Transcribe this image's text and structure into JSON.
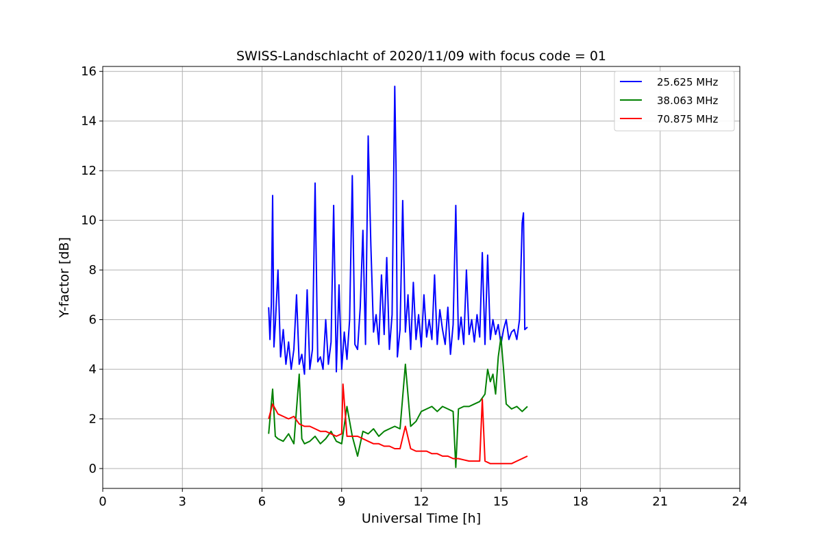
{
  "chart_data": {
    "type": "line",
    "title": "SWISS-Landschlacht of 2020/11/09 with focus code = 01",
    "xlabel": "Universal Time [h]",
    "ylabel": "Y-factor [dB]",
    "xlim": [
      0,
      24
    ],
    "ylim": [
      -0.8,
      16.2
    ],
    "xticks": [
      0,
      3,
      6,
      9,
      12,
      15,
      18,
      21,
      24
    ],
    "yticks": [
      0,
      2,
      4,
      6,
      8,
      10,
      12,
      14,
      16
    ],
    "grid": true,
    "legend_position": "top-right",
    "series": [
      {
        "name": "25.625 MHz",
        "color": "#0000ff",
        "x": [
          6.25,
          6.3,
          6.35,
          6.4,
          6.45,
          6.5,
          6.6,
          6.7,
          6.8,
          6.9,
          7.0,
          7.1,
          7.2,
          7.3,
          7.4,
          7.5,
          7.6,
          7.7,
          7.8,
          7.9,
          8.0,
          8.1,
          8.2,
          8.3,
          8.4,
          8.5,
          8.6,
          8.7,
          8.8,
          8.9,
          9.0,
          9.1,
          9.2,
          9.3,
          9.4,
          9.5,
          9.6,
          9.7,
          9.8,
          9.9,
          10.0,
          10.1,
          10.2,
          10.3,
          10.4,
          10.5,
          10.6,
          10.7,
          10.8,
          10.9,
          11.0,
          11.05,
          11.1,
          11.2,
          11.3,
          11.4,
          11.5,
          11.6,
          11.7,
          11.8,
          11.9,
          12.0,
          12.1,
          12.2,
          12.3,
          12.4,
          12.5,
          12.6,
          12.7,
          12.8,
          12.9,
          13.0,
          13.1,
          13.2,
          13.3,
          13.4,
          13.5,
          13.6,
          13.7,
          13.8,
          13.9,
          14.0,
          14.1,
          14.2,
          14.3,
          14.4,
          14.5,
          14.6,
          14.7,
          14.8,
          14.9,
          15.0,
          15.1,
          15.2,
          15.3,
          15.4,
          15.5,
          15.6,
          15.7,
          15.8,
          15.85,
          15.9,
          16.0
        ],
        "values": [
          6.5,
          5.2,
          6.6,
          11.0,
          4.9,
          5.8,
          8.0,
          4.5,
          5.6,
          4.2,
          5.1,
          4.0,
          4.8,
          7.0,
          4.2,
          4.6,
          3.8,
          7.2,
          4.0,
          4.8,
          11.5,
          4.3,
          4.5,
          4.0,
          6.0,
          4.2,
          5.1,
          10.6,
          3.9,
          7.4,
          4.0,
          5.5,
          4.4,
          6.0,
          11.8,
          5.0,
          4.8,
          6.5,
          9.6,
          5.0,
          13.4,
          9.0,
          5.5,
          6.2,
          5.0,
          7.8,
          5.4,
          8.5,
          4.8,
          6.2,
          15.4,
          12.0,
          4.5,
          5.6,
          10.8,
          5.5,
          7.0,
          4.8,
          7.5,
          5.2,
          6.2,
          4.9,
          7.0,
          5.3,
          6.0,
          5.2,
          7.8,
          5.0,
          6.4,
          5.6,
          5.0,
          6.5,
          4.6,
          5.8,
          10.6,
          5.2,
          6.1,
          5.0,
          8.0,
          5.4,
          6.0,
          5.1,
          6.2,
          5.3,
          8.7,
          5.0,
          8.6,
          5.2,
          6.0,
          5.4,
          5.8,
          5.0,
          5.6,
          6.0,
          5.2,
          5.5,
          5.6,
          5.2,
          6.0,
          9.9,
          10.3,
          5.6,
          5.7
        ]
      },
      {
        "name": "38.063 MHz",
        "color": "#008000",
        "x": [
          6.25,
          6.4,
          6.5,
          6.6,
          6.8,
          7.0,
          7.2,
          7.4,
          7.5,
          7.6,
          7.8,
          8.0,
          8.2,
          8.4,
          8.6,
          8.8,
          9.0,
          9.2,
          9.4,
          9.6,
          9.8,
          10.0,
          10.2,
          10.4,
          10.6,
          10.8,
          11.0,
          11.2,
          11.4,
          11.6,
          11.8,
          12.0,
          12.2,
          12.4,
          12.6,
          12.8,
          13.0,
          13.2,
          13.3,
          13.4,
          13.6,
          13.8,
          14.0,
          14.2,
          14.4,
          14.5,
          14.6,
          14.7,
          14.8,
          14.9,
          15.0,
          15.1,
          15.2,
          15.4,
          15.6,
          15.8,
          16.0
        ],
        "values": [
          1.4,
          3.2,
          1.3,
          1.2,
          1.1,
          1.4,
          1.0,
          3.8,
          1.2,
          1.0,
          1.1,
          1.3,
          1.0,
          1.2,
          1.5,
          1.1,
          1.0,
          2.5,
          1.3,
          0.5,
          1.5,
          1.4,
          1.6,
          1.3,
          1.5,
          1.6,
          1.7,
          1.6,
          4.2,
          1.7,
          1.9,
          2.3,
          2.4,
          2.5,
          2.3,
          2.5,
          2.4,
          2.3,
          0.05,
          2.4,
          2.5,
          2.5,
          2.6,
          2.7,
          3.0,
          4.0,
          3.5,
          3.8,
          3.0,
          4.5,
          5.3,
          4.0,
          2.6,
          2.4,
          2.5,
          2.3,
          2.5
        ]
      },
      {
        "name": "70.875 MHz",
        "color": "#ff0000",
        "x": [
          6.25,
          6.4,
          6.6,
          6.8,
          7.0,
          7.2,
          7.4,
          7.6,
          7.8,
          8.0,
          8.2,
          8.4,
          8.6,
          8.8,
          9.0,
          9.05,
          9.2,
          9.4,
          9.6,
          9.8,
          10.0,
          10.2,
          10.4,
          10.6,
          10.8,
          11.0,
          11.2,
          11.4,
          11.6,
          11.8,
          12.0,
          12.2,
          12.4,
          12.6,
          12.8,
          13.0,
          13.2,
          13.4,
          13.6,
          13.8,
          14.0,
          14.2,
          14.3,
          14.4,
          14.6,
          14.8,
          15.0,
          15.2,
          15.4,
          15.6,
          15.8,
          16.0
        ],
        "values": [
          2.0,
          2.6,
          2.2,
          2.1,
          2.0,
          2.1,
          1.8,
          1.7,
          1.7,
          1.6,
          1.5,
          1.5,
          1.4,
          1.3,
          1.4,
          3.4,
          1.3,
          1.3,
          1.3,
          1.2,
          1.1,
          1.0,
          1.0,
          0.9,
          0.9,
          0.8,
          0.8,
          1.7,
          0.8,
          0.7,
          0.7,
          0.7,
          0.6,
          0.6,
          0.5,
          0.5,
          0.4,
          0.4,
          0.35,
          0.3,
          0.3,
          0.3,
          2.8,
          0.3,
          0.2,
          0.2,
          0.2,
          0.2,
          0.2,
          0.3,
          0.4,
          0.5
        ]
      }
    ]
  }
}
